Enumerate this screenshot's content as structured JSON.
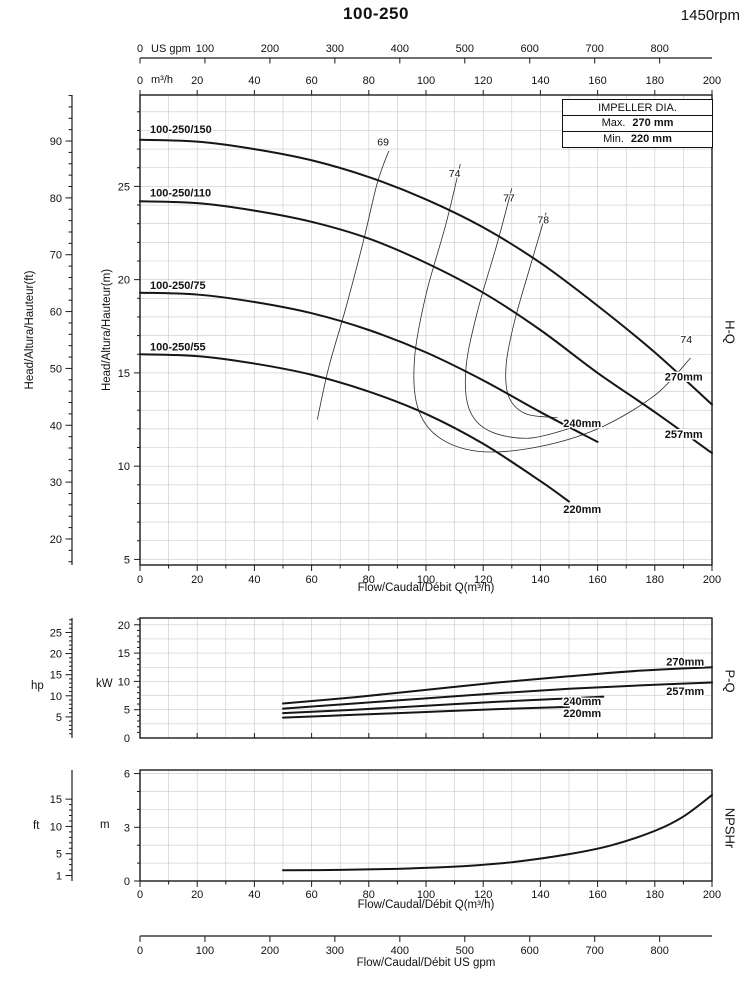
{
  "page": {
    "title": "100-250",
    "speed": "1450rpm"
  },
  "impeller_box": {
    "heading": "IMPELLER DIA.",
    "rows": [
      {
        "label": "Max.",
        "value": "270 mm"
      },
      {
        "label": "Min.",
        "value": "220 mm"
      }
    ]
  },
  "usgpm_axis": {
    "label": "Flow/Caudal/Débit  US gpm",
    "ticks": [
      0,
      100,
      200,
      300,
      400,
      500,
      600,
      700,
      800
    ]
  },
  "chart_data": [
    {
      "id": "hq",
      "type": "line",
      "title": "H-Q",
      "xlabel": "Flow/Caudal/Débit Q(m³/h)",
      "ylabel_ft": "Head/Altura/Hauteur(ft)",
      "ylabel_m": "Head/Altura/Hauteur(m)",
      "xlim": [
        0,
        200
      ],
      "ylim_m": [
        4.7,
        29.9
      ],
      "x_ticks": [
        0,
        20,
        40,
        60,
        80,
        100,
        120,
        140,
        160,
        180,
        200
      ],
      "x_minor_step": 10,
      "y_ticks_m": [
        5,
        10,
        15,
        20,
        25
      ],
      "y_ticks_ft": [
        20,
        30,
        40,
        50,
        60,
        70,
        80,
        90
      ],
      "grid": "on",
      "top_axis": {
        "usgpm": {
          "unit": "US gpm",
          "ticks": [
            0,
            100,
            200,
            300,
            400,
            500,
            600,
            700,
            800
          ]
        },
        "m3h": {
          "unit": "m³/h",
          "ticks": [
            0,
            20,
            40,
            60,
            80,
            100,
            120,
            140,
            160,
            180,
            200
          ]
        }
      },
      "series": [
        {
          "name": "100-250/150",
          "impeller": "270mm",
          "points": [
            [
              0,
              27.5
            ],
            [
              20,
              27.4
            ],
            [
              40,
              27.0
            ],
            [
              60,
              26.4
            ],
            [
              80,
              25.5
            ],
            [
              100,
              24.3
            ],
            [
              120,
              22.8
            ],
            [
              140,
              20.9
            ],
            [
              160,
              18.6
            ],
            [
              180,
              16.1
            ],
            [
              200,
              13.3
            ]
          ]
        },
        {
          "name": "100-250/110",
          "impeller": "257mm",
          "points": [
            [
              0,
              24.2
            ],
            [
              20,
              24.1
            ],
            [
              40,
              23.7
            ],
            [
              60,
              23.1
            ],
            [
              80,
              22.2
            ],
            [
              100,
              20.9
            ],
            [
              120,
              19.3
            ],
            [
              140,
              17.3
            ],
            [
              160,
              15.0
            ],
            [
              180,
              12.9
            ],
            [
              200,
              10.7
            ]
          ]
        },
        {
          "name": "100-250/75",
          "impeller": "240mm",
          "points": [
            [
              0,
              19.3
            ],
            [
              20,
              19.2
            ],
            [
              40,
              18.8
            ],
            [
              60,
              18.2
            ],
            [
              80,
              17.3
            ],
            [
              100,
              16.1
            ],
            [
              120,
              14.6
            ],
            [
              140,
              12.9
            ],
            [
              160,
              11.3
            ]
          ]
        },
        {
          "name": "100-250/55",
          "impeller": "220mm",
          "points": [
            [
              0,
              16.0
            ],
            [
              20,
              15.9
            ],
            [
              40,
              15.5
            ],
            [
              60,
              14.9
            ],
            [
              80,
              14.0
            ],
            [
              100,
              12.8
            ],
            [
              120,
              11.2
            ],
            [
              140,
              9.2
            ],
            [
              150,
              8.1
            ]
          ]
        }
      ],
      "efficiency_contours": [
        {
          "label": "69",
          "points": [
            [
              87,
              26.9
            ],
            [
              83,
              25.2
            ],
            [
              78,
              22.0
            ],
            [
              72,
              18.5
            ],
            [
              66,
              15.3
            ],
            [
              62,
              12.5
            ]
          ]
        },
        {
          "label": "74",
          "points": [
            [
              112,
              26.2
            ],
            [
              107,
              23.0
            ],
            [
              100,
              19.2
            ],
            [
              96,
              15.8
            ],
            [
              97,
              13.2
            ],
            [
              104,
              11.6
            ],
            [
              118,
              10.8
            ],
            [
              138,
              11.0
            ],
            [
              160,
              12.0
            ],
            [
              180,
              13.8
            ],
            [
              192.5,
              15.8
            ]
          ]
        },
        {
          "label": "77",
          "points": [
            [
              130,
              24.9
            ],
            [
              125,
              22.0
            ],
            [
              118,
              18.3
            ],
            [
              114,
              15.3
            ],
            [
              115,
              13.1
            ],
            [
              122,
              11.9
            ],
            [
              136,
              11.5
            ],
            [
              152,
              12.1
            ]
          ]
        },
        {
          "label": "78",
          "points": [
            [
              142,
              23.6
            ],
            [
              137,
              21.0
            ],
            [
              131,
              17.8
            ],
            [
              128,
              15.4
            ],
            [
              129,
              13.7
            ],
            [
              135,
              12.8
            ],
            [
              146,
              12.6
            ]
          ]
        }
      ],
      "series_labels": [
        {
          "text": "100-250/150",
          "x": 3.5,
          "y": 27.85
        },
        {
          "text": "100-250/110",
          "x": 3.5,
          "y": 24.45
        },
        {
          "text": "100-250/75",
          "x": 3.5,
          "y": 19.5
        },
        {
          "text": "100-250/55",
          "x": 3.5,
          "y": 16.2
        }
      ],
      "impeller_labels": [
        {
          "text": "270mm",
          "x": 183.5,
          "y": 14.6
        },
        {
          "text": "257mm",
          "x": 183.5,
          "y": 11.5
        },
        {
          "text": "240mm",
          "x": 148,
          "y": 12.1
        },
        {
          "text": "220mm",
          "x": 148,
          "y": 7.5
        }
      ],
      "eff_labels": [
        {
          "text": "69",
          "x": 85,
          "y": 27.2
        },
        {
          "text": "74",
          "x": 110,
          "y": 25.5
        },
        {
          "text": "77",
          "x": 129,
          "y": 24.2
        },
        {
          "text": "78",
          "x": 141,
          "y": 23.0
        },
        {
          "text": "74",
          "x": 191,
          "y": 16.6
        }
      ]
    },
    {
      "id": "pq",
      "type": "line",
      "title": "P-Q",
      "ylabel_hp": "hp",
      "ylabel_kw": "kW",
      "xlim": [
        0,
        200
      ],
      "x_minor_step": 10,
      "ylim_kw": [
        0,
        21.2
      ],
      "y_ticks_kw": [
        0,
        5,
        10,
        15,
        20
      ],
      "y_ticks_hp": [
        5,
        10,
        15,
        20,
        25
      ],
      "grid": "on",
      "series": [
        {
          "impeller": "270mm",
          "points": [
            [
              50,
              6.1
            ],
            [
              75,
              7.2
            ],
            [
              100,
              8.5
            ],
            [
              125,
              9.8
            ],
            [
              150,
              10.9
            ],
            [
              175,
              11.9
            ],
            [
              200,
              12.5
            ]
          ]
        },
        {
          "impeller": "257mm",
          "points": [
            [
              50,
              5.2
            ],
            [
              75,
              6.1
            ],
            [
              100,
              7.0
            ],
            [
              125,
              7.9
            ],
            [
              150,
              8.7
            ],
            [
              175,
              9.3
            ],
            [
              200,
              9.8
            ]
          ]
        },
        {
          "impeller": "240mm",
          "points": [
            [
              50,
              4.4
            ],
            [
              75,
              5.0
            ],
            [
              100,
              5.7
            ],
            [
              125,
              6.4
            ],
            [
              150,
              7.0
            ],
            [
              162,
              7.3
            ]
          ]
        },
        {
          "impeller": "220mm",
          "points": [
            [
              50,
              3.6
            ],
            [
              75,
              4.1
            ],
            [
              100,
              4.6
            ],
            [
              125,
              5.1
            ],
            [
              150,
              5.5
            ]
          ]
        }
      ],
      "impeller_labels": [
        {
          "text": "270mm",
          "x": 184,
          "y": 12.8
        },
        {
          "text": "257mm",
          "x": 184,
          "y": 7.6
        },
        {
          "text": "240mm",
          "x": 148,
          "y": 5.8
        },
        {
          "text": "220mm",
          "x": 148,
          "y": 3.7
        }
      ]
    },
    {
      "id": "npshr",
      "type": "line",
      "title": "NPSHr",
      "xlabel": "Flow/Caudal/Débit Q(m³/h)",
      "ylabel_ft": "ft",
      "ylabel_m": "m",
      "xlim": [
        0,
        200
      ],
      "x_ticks": [
        0,
        20,
        40,
        60,
        80,
        100,
        120,
        140,
        160,
        180,
        200
      ],
      "x_minor_step": 10,
      "ylim_m": [
        0,
        6.2
      ],
      "y_ticks_m": [
        0,
        3,
        6
      ],
      "y_ticks_ft": [
        1,
        5,
        10,
        15
      ],
      "grid": "on",
      "series": [
        {
          "name": "NPSHr",
          "points": [
            [
              50,
              0.6
            ],
            [
              70,
              0.62
            ],
            [
              90,
              0.68
            ],
            [
              110,
              0.8
            ],
            [
              130,
              1.05
            ],
            [
              150,
              1.5
            ],
            [
              165,
              2.0
            ],
            [
              180,
              2.8
            ],
            [
              190,
              3.6
            ],
            [
              200,
              4.8
            ]
          ]
        }
      ]
    }
  ]
}
